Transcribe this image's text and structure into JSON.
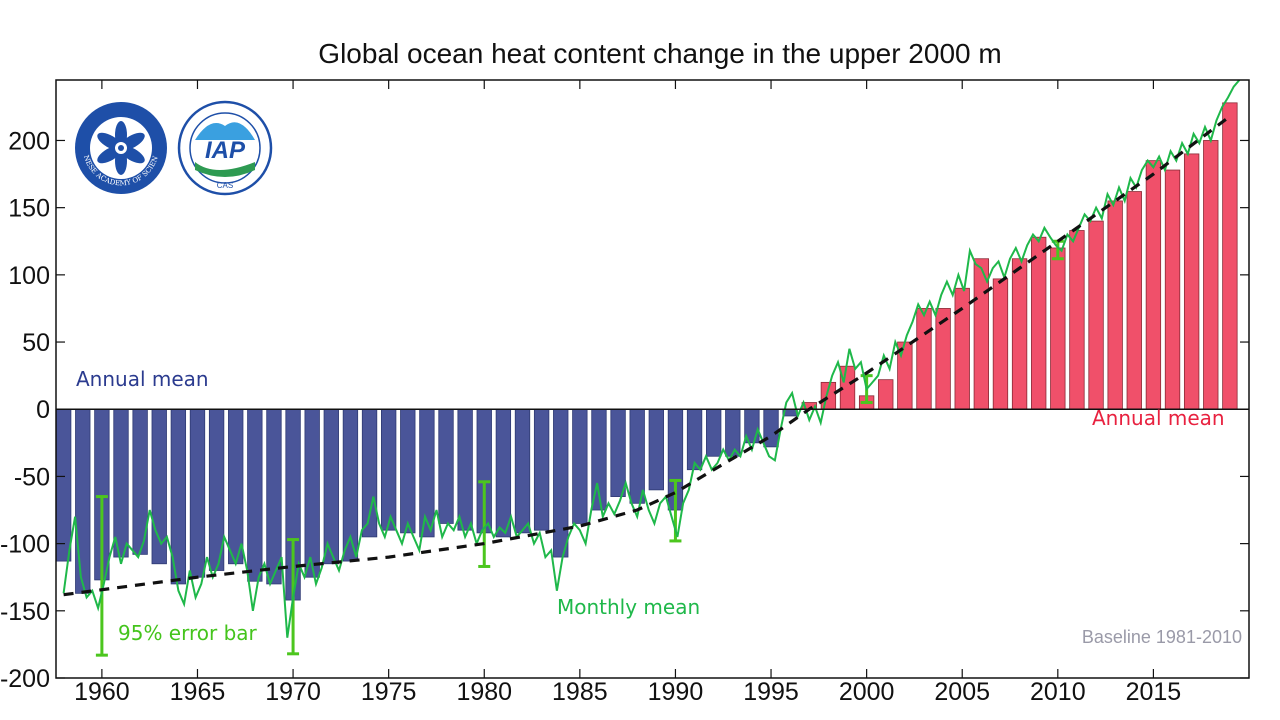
{
  "chart_data": {
    "type": "bar",
    "title": "Global ocean heat content change in the upper 2000 m",
    "xlabel": "",
    "ylabel": "",
    "xlim": [
      1957.6,
      1973.0
    ],
    "ylim": [
      -200,
      245
    ],
    "x_ticks": [
      1960,
      1965,
      1970,
      1975,
      1980,
      1985,
      1990,
      1995,
      2000,
      2005,
      2010,
      2015
    ],
    "y_ticks": [
      200,
      150,
      100,
      50,
      0,
      -50,
      -100,
      -150,
      -200
    ],
    "y_tick_labels": [
      "200",
      "150",
      "100",
      "50",
      "0",
      "-50",
      "-100",
      "-150",
      "-200"
    ],
    "annual_years": [
      1958,
      1959,
      1960,
      1961,
      1962,
      1963,
      1964,
      1965,
      1966,
      1967,
      1968,
      1969,
      1970,
      1971,
      1972,
      1973,
      1974,
      1975,
      1976,
      1977,
      1978,
      1979,
      1980,
      1981,
      1982,
      1983,
      1984,
      1985,
      1986,
      1987,
      1988,
      1989,
      1990,
      1991,
      1992,
      1993,
      1994,
      1995,
      1996,
      1997,
      1998,
      1999,
      2000,
      2001,
      2002,
      2003,
      2004,
      2005,
      2006,
      2007,
      2008,
      2009,
      2010,
      2011,
      2012,
      2013,
      2014,
      2015,
      2016,
      2017,
      2018,
      2019
    ],
    "annual_mean": [
      -113,
      -137,
      -127,
      -110,
      -108,
      -115,
      -130,
      -125,
      -120,
      -115,
      -128,
      -130,
      -142,
      -125,
      -115,
      -113,
      -95,
      -90,
      -92,
      -95,
      -85,
      -90,
      -92,
      -95,
      -92,
      -90,
      -110,
      -85,
      -75,
      -65,
      -70,
      -60,
      -75,
      -45,
      -35,
      -35,
      -25,
      -28,
      -5,
      5,
      20,
      32,
      10,
      22,
      50,
      75,
      75,
      90,
      112,
      97,
      112,
      128,
      120,
      133,
      140,
      155,
      162,
      185,
      178,
      190,
      200,
      228
    ],
    "annual_colors": {
      "negative": "#4a5599",
      "positive": "#f0506a"
    },
    "trend_line": {
      "style": "dashed",
      "color": "#111111",
      "points": [
        [
          1958,
          -138
        ],
        [
          1965,
          -125
        ],
        [
          1970,
          -117
        ],
        [
          1975,
          -110
        ],
        [
          1980,
          -100
        ],
        [
          1985,
          -87
        ],
        [
          1988,
          -75
        ],
        [
          1990,
          -62
        ],
        [
          1992,
          -45
        ],
        [
          1995,
          -20
        ],
        [
          1997,
          0
        ],
        [
          2000,
          27
        ],
        [
          2005,
          75
        ],
        [
          2010,
          125
        ],
        [
          2015,
          175
        ],
        [
          2019,
          218
        ]
      ]
    },
    "monthly_mean": {
      "color": "#1fb84a",
      "points": [
        [
          1958.0,
          -137
        ],
        [
          1958.3,
          -105
        ],
        [
          1958.6,
          -80
        ],
        [
          1958.9,
          -125
        ],
        [
          1959.2,
          -140
        ],
        [
          1959.5,
          -135
        ],
        [
          1959.8,
          -148
        ],
        [
          1960.1,
          -130
        ],
        [
          1960.4,
          -110
        ],
        [
          1960.7,
          -95
        ],
        [
          1961.0,
          -115
        ],
        [
          1961.3,
          -100
        ],
        [
          1961.6,
          -105
        ],
        [
          1961.9,
          -110
        ],
        [
          1962.2,
          -98
        ],
        [
          1962.5,
          -75
        ],
        [
          1962.8,
          -90
        ],
        [
          1963.1,
          -100
        ],
        [
          1963.4,
          -95
        ],
        [
          1963.7,
          -110
        ],
        [
          1964.0,
          -135
        ],
        [
          1964.3,
          -145
        ],
        [
          1964.6,
          -120
        ],
        [
          1964.9,
          -140
        ],
        [
          1965.2,
          -130
        ],
        [
          1965.5,
          -110
        ],
        [
          1965.8,
          -125
        ],
        [
          1966.1,
          -115
        ],
        [
          1966.4,
          -95
        ],
        [
          1966.7,
          -105
        ],
        [
          1967.0,
          -115
        ],
        [
          1967.3,
          -100
        ],
        [
          1967.6,
          -120
        ],
        [
          1967.9,
          -150
        ],
        [
          1968.2,
          -125
        ],
        [
          1968.5,
          -115
        ],
        [
          1968.8,
          -130
        ],
        [
          1969.1,
          -120
        ],
        [
          1969.4,
          -110
        ],
        [
          1969.7,
          -170
        ],
        [
          1970.0,
          -140
        ],
        [
          1970.3,
          -115
        ],
        [
          1970.6,
          -125
        ],
        [
          1970.9,
          -110
        ],
        [
          1971.2,
          -130
        ],
        [
          1971.5,
          -118
        ],
        [
          1971.8,
          -100
        ],
        [
          1972.1,
          -110
        ],
        [
          1972.4,
          -120
        ],
        [
          1972.7,
          -105
        ],
        [
          1973.0,
          -95
        ],
        [
          1973.3,
          -110
        ],
        [
          1973.6,
          -90
        ],
        [
          1973.9,
          -85
        ],
        [
          1974.2,
          -65
        ],
        [
          1974.5,
          -85
        ],
        [
          1974.8,
          -95
        ],
        [
          1975.1,
          -80
        ],
        [
          1975.4,
          -90
        ],
        [
          1975.7,
          -100
        ],
        [
          1976.0,
          -85
        ],
        [
          1976.3,
          -95
        ],
        [
          1976.6,
          -105
        ],
        [
          1976.9,
          -80
        ],
        [
          1977.2,
          -90
        ],
        [
          1977.5,
          -75
        ],
        [
          1977.8,
          -95
        ],
        [
          1978.1,
          -85
        ],
        [
          1978.4,
          -90
        ],
        [
          1978.7,
          -80
        ],
        [
          1979.0,
          -95
        ],
        [
          1979.3,
          -85
        ],
        [
          1979.6,
          -100
        ],
        [
          1979.9,
          -90
        ],
        [
          1980.2,
          -85
        ],
        [
          1980.5,
          -95
        ],
        [
          1980.8,
          -88
        ],
        [
          1981.1,
          -92
        ],
        [
          1981.4,
          -80
        ],
        [
          1981.7,
          -95
        ],
        [
          1982.0,
          -90
        ],
        [
          1982.3,
          -85
        ],
        [
          1982.6,
          -100
        ],
        [
          1982.9,
          -92
        ],
        [
          1983.2,
          -110
        ],
        [
          1983.5,
          -105
        ],
        [
          1983.8,
          -135
        ],
        [
          1984.1,
          -110
        ],
        [
          1984.4,
          -95
        ],
        [
          1984.7,
          -85
        ],
        [
          1985.0,
          -90
        ],
        [
          1985.3,
          -100
        ],
        [
          1985.6,
          -75
        ],
        [
          1985.9,
          -55
        ],
        [
          1986.2,
          -80
        ],
        [
          1986.5,
          -70
        ],
        [
          1986.8,
          -78
        ],
        [
          1987.1,
          -68
        ],
        [
          1987.4,
          -55
        ],
        [
          1987.7,
          -70
        ],
        [
          1988.0,
          -80
        ],
        [
          1988.3,
          -60
        ],
        [
          1988.6,
          -75
        ],
        [
          1988.9,
          -85
        ],
        [
          1989.2,
          -70
        ],
        [
          1989.5,
          -65
        ],
        [
          1989.8,
          -80
        ],
        [
          1990.1,
          -95
        ],
        [
          1990.4,
          -70
        ],
        [
          1990.7,
          -60
        ],
        [
          1991.0,
          -40
        ],
        [
          1991.3,
          -45
        ],
        [
          1991.6,
          -35
        ],
        [
          1991.9,
          -45
        ],
        [
          1992.2,
          -40
        ],
        [
          1992.5,
          -30
        ],
        [
          1992.8,
          -38
        ],
        [
          1993.1,
          -30
        ],
        [
          1993.4,
          -35
        ],
        [
          1993.7,
          -20
        ],
        [
          1994.0,
          -30
        ],
        [
          1994.3,
          -15
        ],
        [
          1994.6,
          -25
        ],
        [
          1994.9,
          -35
        ],
        [
          1995.2,
          -38
        ],
        [
          1995.5,
          -15
        ],
        [
          1995.8,
          5
        ],
        [
          1996.1,
          12
        ],
        [
          1996.4,
          -5
        ],
        [
          1996.7,
          5
        ],
        [
          1997.0,
          -8
        ],
        [
          1997.3,
          2
        ],
        [
          1997.6,
          -10
        ],
        [
          1997.9,
          10
        ],
        [
          1998.2,
          25
        ],
        [
          1998.5,
          35
        ],
        [
          1998.8,
          20
        ],
        [
          1999.1,
          45
        ],
        [
          1999.4,
          30
        ],
        [
          1999.7,
          35
        ],
        [
          2000.0,
          15
        ],
        [
          2000.3,
          20
        ],
        [
          2000.6,
          25
        ],
        [
          2000.9,
          40
        ],
        [
          2001.2,
          30
        ],
        [
          2001.5,
          50
        ],
        [
          2001.8,
          40
        ],
        [
          2002.1,
          55
        ],
        [
          2002.4,
          65
        ],
        [
          2002.7,
          78
        ],
        [
          2003.0,
          70
        ],
        [
          2003.3,
          80
        ],
        [
          2003.6,
          70
        ],
        [
          2003.9,
          85
        ],
        [
          2004.2,
          95
        ],
        [
          2004.5,
          85
        ],
        [
          2004.8,
          100
        ],
        [
          2005.1,
          88
        ],
        [
          2005.4,
          118
        ],
        [
          2005.7,
          108
        ],
        [
          2006.0,
          105
        ],
        [
          2006.3,
          95
        ],
        [
          2006.6,
          105
        ],
        [
          2006.9,
          110
        ],
        [
          2007.2,
          98
        ],
        [
          2007.5,
          112
        ],
        [
          2007.8,
          120
        ],
        [
          2008.1,
          110
        ],
        [
          2008.4,
          122
        ],
        [
          2008.7,
          130
        ],
        [
          2009.0,
          125
        ],
        [
          2009.3,
          135
        ],
        [
          2009.6,
          128
        ],
        [
          2009.9,
          122
        ],
        [
          2010.2,
          118
        ],
        [
          2010.5,
          130
        ],
        [
          2010.8,
          125
        ],
        [
          2011.1,
          135
        ],
        [
          2011.4,
          145
        ],
        [
          2011.7,
          140
        ],
        [
          2012.0,
          150
        ],
        [
          2012.3,
          142
        ],
        [
          2012.6,
          160
        ],
        [
          2012.9,
          152
        ],
        [
          2013.2,
          165
        ],
        [
          2013.5,
          155
        ],
        [
          2013.8,
          172
        ],
        [
          2014.1,
          165
        ],
        [
          2014.4,
          178
        ],
        [
          2014.7,
          185
        ],
        [
          2015.0,
          180
        ],
        [
          2015.3,
          188
        ],
        [
          2015.6,
          178
        ],
        [
          2015.9,
          192
        ],
        [
          2016.2,
          185
        ],
        [
          2016.5,
          198
        ],
        [
          2016.8,
          190
        ],
        [
          2017.1,
          205
        ],
        [
          2017.4,
          198
        ],
        [
          2017.7,
          210
        ],
        [
          2018.0,
          200
        ],
        [
          2018.3,
          215
        ],
        [
          2018.6,
          225
        ],
        [
          2018.9,
          232
        ],
        [
          2019.2,
          240
        ],
        [
          2019.5,
          245
        ]
      ]
    },
    "error_bars": {
      "color": "#4cc61e",
      "items": [
        {
          "x": 1960,
          "low": -183,
          "high": -65
        },
        {
          "x": 1970,
          "low": -182,
          "high": -97
        },
        {
          "x": 1980,
          "low": -117,
          "high": -54
        },
        {
          "x": 1990,
          "low": -98,
          "high": -53
        },
        {
          "x": 2000,
          "low": 5,
          "high": 25
        },
        {
          "x": 2010,
          "low": 112,
          "high": 125
        }
      ]
    },
    "annotations": {
      "annual_mean_negative": "Annual mean",
      "annual_mean_positive": "Annual mean",
      "monthly_mean": "Monthly mean",
      "error_bar": "95% error bar",
      "baseline": "Baseline 1981-2010"
    },
    "logos": [
      {
        "icon": "chinese-academy-of-sciences-logo",
        "caption": "CHINESE ACADEMY OF SCIENCES",
        "color": "#1e4fa8"
      },
      {
        "icon": "iap-cas-logo",
        "text": "IAP",
        "caption": "CAS",
        "color": "#1e4fa8"
      }
    ]
  }
}
